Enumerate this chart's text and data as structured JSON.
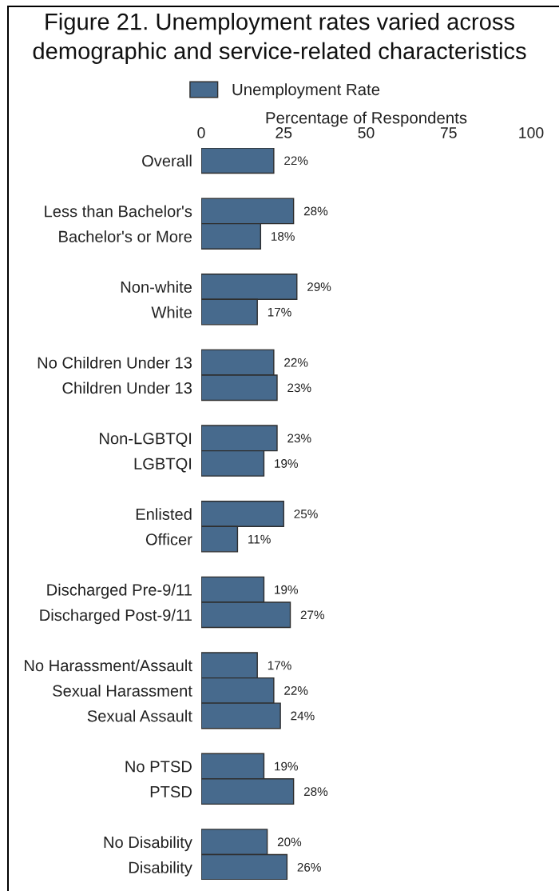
{
  "chart_data": {
    "type": "bar",
    "orientation": "horizontal",
    "title": "Figure 21. Unemployment rates varied across demographic and service-related characteristics",
    "xlabel": "Percentage of Respondents",
    "categories": [
      "Overall",
      null,
      "Less than Bachelor's",
      "Bachelor's or More",
      null,
      "Non-white",
      "White",
      null,
      "No Children Under 13",
      "Children Under 13",
      null,
      "Non-LGBTQI",
      "LGBTQI",
      null,
      "Enlisted",
      "Officer",
      null,
      "Discharged Pre-9/11",
      "Discharged Post-9/11",
      null,
      "No Harassment/Assault",
      "Sexual Harassment",
      "Sexual Assault",
      null,
      "No PTSD",
      "PTSD",
      null,
      "No Disability",
      "Disability"
    ],
    "series": [
      {
        "name": "Unemployment Rate",
        "color": "#476a8d",
        "values": [
          22,
          null,
          28,
          18,
          null,
          29,
          17,
          null,
          22,
          23,
          null,
          23,
          19,
          null,
          25,
          11,
          null,
          19,
          27,
          null,
          17,
          22,
          24,
          null,
          19,
          28,
          null,
          20,
          26
        ],
        "value_labels": [
          "22%",
          null,
          "28%",
          "18%",
          null,
          "29%",
          "17%",
          null,
          "22%",
          "23%",
          null,
          "23%",
          "19%",
          null,
          "25%",
          "11%",
          null,
          "19%",
          "27%",
          null,
          "17%",
          "22%",
          "24%",
          null,
          "19%",
          "28%",
          null,
          "20%",
          "26%"
        ]
      }
    ],
    "xlim": [
      0,
      100
    ],
    "xticks": [
      0,
      25,
      50,
      75,
      100
    ],
    "legend": "top",
    "grid": false
  }
}
